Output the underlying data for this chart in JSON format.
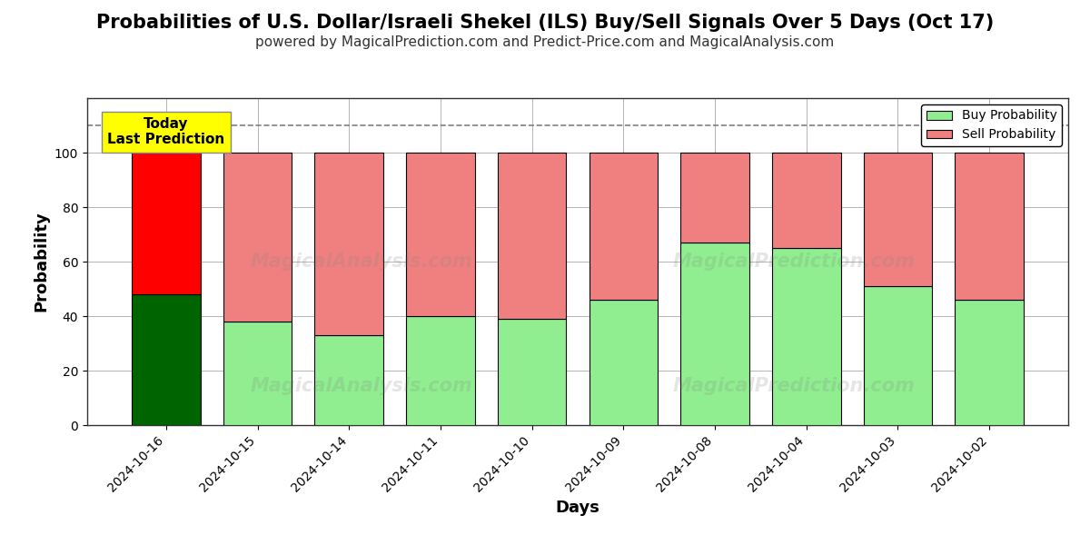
{
  "title": "Probabilities of U.S. Dollar/Israeli Shekel (ILS) Buy/Sell Signals Over 5 Days (Oct 17)",
  "subtitle": "powered by MagicalPrediction.com and Predict-Price.com and MagicalAnalysis.com",
  "xlabel": "Days",
  "ylabel": "Probability",
  "watermark1": "MagicalAnalysis.com",
  "watermark2": "MagicalPrediction.com",
  "categories": [
    "2024-10-16",
    "2024-10-15",
    "2024-10-14",
    "2024-10-11",
    "2024-10-10",
    "2024-10-09",
    "2024-10-08",
    "2024-10-04",
    "2024-10-03",
    "2024-10-02"
  ],
  "buy_values": [
    48,
    38,
    33,
    40,
    39,
    46,
    67,
    65,
    51,
    46
  ],
  "sell_values": [
    52,
    62,
    67,
    60,
    61,
    54,
    33,
    35,
    49,
    54
  ],
  "today_index": 0,
  "today_buy_color": "#006400",
  "today_sell_color": "#ff0000",
  "normal_buy_color": "#90EE90",
  "normal_sell_color": "#F08080",
  "bar_edge_color": "#000000",
  "today_label_bg": "#ffff00",
  "today_label_text": "Today\nLast Prediction",
  "ylim": [
    0,
    120
  ],
  "yticks": [
    0,
    20,
    40,
    60,
    80,
    100
  ],
  "dashed_line_y": 110,
  "legend_buy": "Buy Probability",
  "legend_sell": "Sell Probability",
  "title_fontsize": 15,
  "subtitle_fontsize": 11,
  "axis_label_fontsize": 13,
  "tick_fontsize": 10,
  "background_color": "#ffffff",
  "grid_color": "#aaaaaa"
}
